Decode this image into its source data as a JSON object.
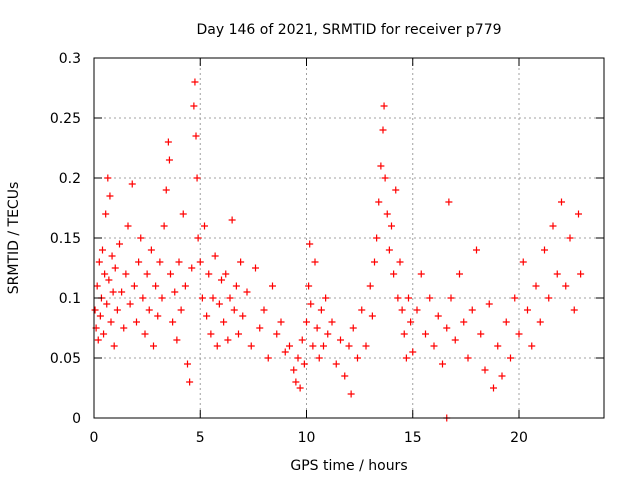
{
  "chart_data": {
    "type": "scatter",
    "title": "Day 146 of 2021, SRMTID for receiver p779",
    "xlabel": "GPS time / hours",
    "ylabel": "SRMTID / TECUs",
    "xlim": [
      0,
      24
    ],
    "ylim": [
      0,
      0.3
    ],
    "x_ticks": [
      0,
      5,
      10,
      15,
      20
    ],
    "x_tick_labels": [
      "0",
      "5",
      "10",
      "15",
      "20"
    ],
    "y_ticks": [
      0,
      0.05,
      0.1,
      0.15,
      0.2,
      0.25,
      0.3
    ],
    "y_tick_labels": [
      "0",
      "0.05",
      "0.1",
      "0.15",
      "0.2",
      "0.25",
      "0.3"
    ],
    "grid": true,
    "marker": "+",
    "color": "#ff0000",
    "series": [
      {
        "name": "SRMTID",
        "points": [
          [
            0.05,
            0.09
          ],
          [
            0.1,
            0.075
          ],
          [
            0.15,
            0.11
          ],
          [
            0.2,
            0.065
          ],
          [
            0.25,
            0.13
          ],
          [
            0.3,
            0.085
          ],
          [
            0.35,
            0.1
          ],
          [
            0.4,
            0.14
          ],
          [
            0.45,
            0.07
          ],
          [
            0.5,
            0.12
          ],
          [
            0.55,
            0.17
          ],
          [
            0.6,
            0.095
          ],
          [
            0.65,
            0.2
          ],
          [
            0.7,
            0.115
          ],
          [
            0.75,
            0.185
          ],
          [
            0.8,
            0.08
          ],
          [
            0.85,
            0.135
          ],
          [
            0.9,
            0.105
          ],
          [
            0.95,
            0.06
          ],
          [
            1.0,
            0.125
          ],
          [
            1.1,
            0.09
          ],
          [
            1.2,
            0.145
          ],
          [
            1.3,
            0.105
          ],
          [
            1.4,
            0.075
          ],
          [
            1.5,
            0.12
          ],
          [
            1.6,
            0.16
          ],
          [
            1.7,
            0.095
          ],
          [
            1.8,
            0.195
          ],
          [
            1.9,
            0.11
          ],
          [
            2.0,
            0.08
          ],
          [
            2.1,
            0.13
          ],
          [
            2.2,
            0.15
          ],
          [
            2.3,
            0.1
          ],
          [
            2.4,
            0.07
          ],
          [
            2.5,
            0.12
          ],
          [
            2.6,
            0.09
          ],
          [
            2.7,
            0.14
          ],
          [
            2.8,
            0.06
          ],
          [
            2.9,
            0.11
          ],
          [
            3.0,
            0.085
          ],
          [
            3.1,
            0.13
          ],
          [
            3.2,
            0.1
          ],
          [
            3.3,
            0.16
          ],
          [
            3.4,
            0.19
          ],
          [
            3.5,
            0.23
          ],
          [
            3.55,
            0.215
          ],
          [
            3.6,
            0.12
          ],
          [
            3.7,
            0.08
          ],
          [
            3.8,
            0.105
          ],
          [
            3.9,
            0.065
          ],
          [
            4.0,
            0.13
          ],
          [
            4.1,
            0.09
          ],
          [
            4.2,
            0.17
          ],
          [
            4.3,
            0.11
          ],
          [
            4.4,
            0.045
          ],
          [
            4.5,
            0.03
          ],
          [
            4.6,
            0.125
          ],
          [
            4.7,
            0.26
          ],
          [
            4.75,
            0.28
          ],
          [
            4.8,
            0.235
          ],
          [
            4.85,
            0.2
          ],
          [
            4.9,
            0.15
          ],
          [
            5.0,
            0.13
          ],
          [
            5.1,
            0.1
          ],
          [
            5.2,
            0.16
          ],
          [
            5.3,
            0.085
          ],
          [
            5.4,
            0.12
          ],
          [
            5.5,
            0.07
          ],
          [
            5.6,
            0.1
          ],
          [
            5.7,
            0.135
          ],
          [
            5.8,
            0.06
          ],
          [
            5.9,
            0.095
          ],
          [
            6.0,
            0.115
          ],
          [
            6.1,
            0.08
          ],
          [
            6.2,
            0.12
          ],
          [
            6.3,
            0.065
          ],
          [
            6.4,
            0.1
          ],
          [
            6.5,
            0.165
          ],
          [
            6.6,
            0.09
          ],
          [
            6.7,
            0.11
          ],
          [
            6.8,
            0.07
          ],
          [
            6.9,
            0.13
          ],
          [
            7.0,
            0.085
          ],
          [
            7.2,
            0.105
          ],
          [
            7.4,
            0.06
          ],
          [
            7.6,
            0.125
          ],
          [
            7.8,
            0.075
          ],
          [
            8.0,
            0.09
          ],
          [
            8.2,
            0.05
          ],
          [
            8.4,
            0.11
          ],
          [
            8.6,
            0.07
          ],
          [
            8.8,
            0.08
          ],
          [
            9.0,
            0.055
          ],
          [
            9.2,
            0.06
          ],
          [
            9.4,
            0.04
          ],
          [
            9.5,
            0.03
          ],
          [
            9.6,
            0.05
          ],
          [
            9.7,
            0.025
          ],
          [
            9.8,
            0.065
          ],
          [
            9.9,
            0.045
          ],
          [
            10.0,
            0.08
          ],
          [
            10.1,
            0.11
          ],
          [
            10.15,
            0.145
          ],
          [
            10.2,
            0.095
          ],
          [
            10.3,
            0.06
          ],
          [
            10.4,
            0.13
          ],
          [
            10.5,
            0.075
          ],
          [
            10.6,
            0.05
          ],
          [
            10.7,
            0.09
          ],
          [
            10.8,
            0.06
          ],
          [
            10.9,
            0.1
          ],
          [
            11.0,
            0.07
          ],
          [
            11.2,
            0.08
          ],
          [
            11.4,
            0.045
          ],
          [
            11.6,
            0.065
          ],
          [
            11.8,
            0.035
          ],
          [
            12.0,
            0.06
          ],
          [
            12.1,
            0.02
          ],
          [
            12.2,
            0.075
          ],
          [
            12.4,
            0.05
          ],
          [
            12.6,
            0.09
          ],
          [
            12.8,
            0.06
          ],
          [
            13.0,
            0.11
          ],
          [
            13.1,
            0.085
          ],
          [
            13.2,
            0.13
          ],
          [
            13.3,
            0.15
          ],
          [
            13.4,
            0.18
          ],
          [
            13.5,
            0.21
          ],
          [
            13.6,
            0.24
          ],
          [
            13.65,
            0.26
          ],
          [
            13.7,
            0.2
          ],
          [
            13.8,
            0.17
          ],
          [
            13.9,
            0.14
          ],
          [
            14.0,
            0.16
          ],
          [
            14.1,
            0.12
          ],
          [
            14.2,
            0.19
          ],
          [
            14.3,
            0.1
          ],
          [
            14.4,
            0.13
          ],
          [
            14.5,
            0.09
          ],
          [
            14.6,
            0.07
          ],
          [
            14.7,
            0.05
          ],
          [
            14.8,
            0.1
          ],
          [
            14.9,
            0.08
          ],
          [
            15.0,
            0.055
          ],
          [
            15.2,
            0.09
          ],
          [
            15.4,
            0.12
          ],
          [
            15.6,
            0.07
          ],
          [
            15.8,
            0.1
          ],
          [
            16.0,
            0.06
          ],
          [
            16.2,
            0.085
          ],
          [
            16.4,
            0.045
          ],
          [
            16.6,
            0.075
          ],
          [
            16.7,
            0.18
          ],
          [
            16.8,
            0.1
          ],
          [
            17.0,
            0.065
          ],
          [
            17.2,
            0.12
          ],
          [
            17.4,
            0.08
          ],
          [
            17.6,
            0.05
          ],
          [
            17.8,
            0.09
          ],
          [
            18.0,
            0.14
          ],
          [
            18.2,
            0.07
          ],
          [
            18.4,
            0.04
          ],
          [
            18.6,
            0.095
          ],
          [
            18.8,
            0.025
          ],
          [
            19.0,
            0.06
          ],
          [
            19.2,
            0.035
          ],
          [
            19.4,
            0.08
          ],
          [
            19.6,
            0.05
          ],
          [
            19.8,
            0.1
          ],
          [
            20.0,
            0.07
          ],
          [
            20.2,
            0.13
          ],
          [
            20.4,
            0.09
          ],
          [
            20.6,
            0.06
          ],
          [
            20.8,
            0.11
          ],
          [
            21.0,
            0.08
          ],
          [
            21.2,
            0.14
          ],
          [
            21.4,
            0.1
          ],
          [
            21.6,
            0.16
          ],
          [
            21.8,
            0.12
          ],
          [
            22.0,
            0.18
          ],
          [
            22.2,
            0.11
          ],
          [
            22.4,
            0.15
          ],
          [
            22.6,
            0.09
          ],
          [
            22.8,
            0.17
          ],
          [
            22.9,
            0.12
          ],
          [
            16.6,
            0.0
          ]
        ]
      }
    ]
  }
}
